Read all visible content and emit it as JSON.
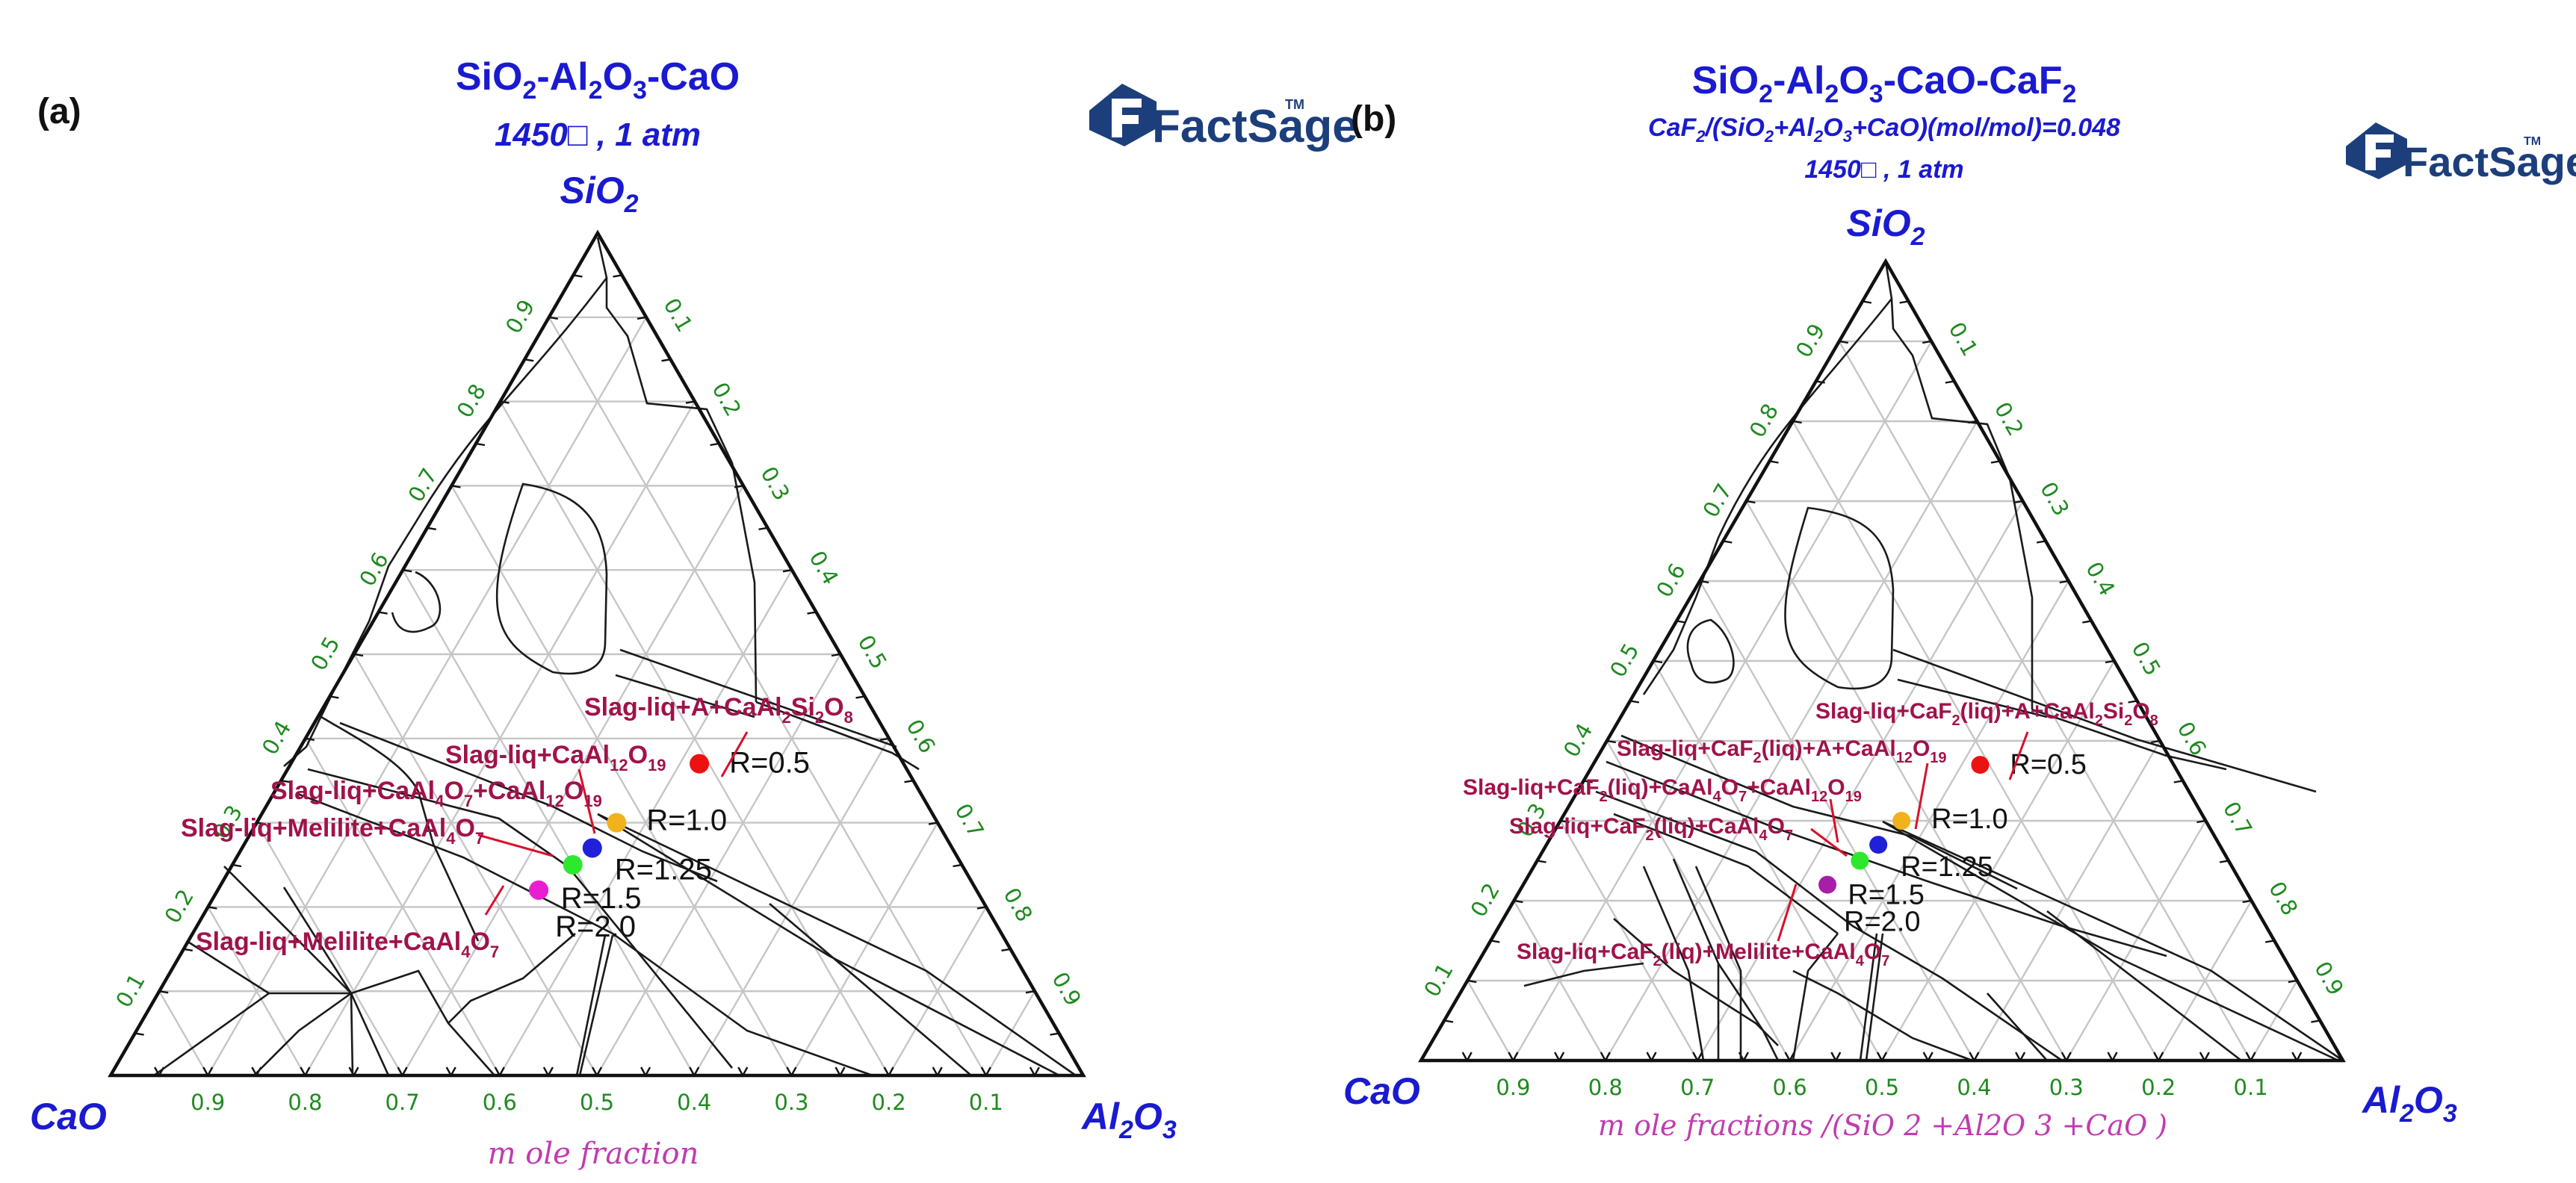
{
  "panels": [
    {
      "panel_label": "(a)",
      "title": "SiO2-Al2O3-CaO",
      "conditions": "1450□ , 1 atm",
      "composition": "",
      "logo_text": "FactSage",
      "logo_tm": "TM",
      "corners": {
        "top": "SiO2",
        "left": "CaO",
        "right": "Al2O3"
      },
      "axis_title": "m ole fraction",
      "tick_labels": [
        "0.1",
        "0.2",
        "0.3",
        "0.4",
        "0.5",
        "0.6",
        "0.7",
        "0.8",
        "0.9"
      ],
      "phase_labels": [
        "Slag-liq+A+CaAl2Si2O8",
        "Slag-liq+CaAl12O19",
        "Slag-liq+CaAl4O7+CaAl12O19",
        "Slag-liq+Melilite+CaAl4O7",
        "Slag-liq+Melilite+CaAl4O7"
      ],
      "points": [
        {
          "label": "R=0.5",
          "color": "#ee1111",
          "sio2": 0.37,
          "al2o3": 0.42,
          "cao": 0.21
        },
        {
          "label": "R=1.0",
          "color": "#f2b21c",
          "sio2": 0.3,
          "al2o3": 0.37,
          "cao": 0.33
        },
        {
          "label": "R=1.25",
          "color": "#2020d8",
          "sio2": 0.27,
          "al2o3": 0.36,
          "cao": 0.37
        },
        {
          "label": "R=1.5",
          "color": "#2ee82e",
          "sio2": 0.25,
          "al2o3": 0.35,
          "cao": 0.4
        },
        {
          "label": "R=2.0",
          "color": "#e81ed0",
          "sio2": 0.22,
          "al2o3": 0.33,
          "cao": 0.45
        }
      ]
    },
    {
      "panel_label": "(b)",
      "title": "SiO2-Al2O3-CaO-CaF2",
      "conditions": "1450□ , 1 atm",
      "composition": "CaF2/(SiO2+Al2O3+CaO)(mol/mol)=0.048",
      "logo_text": "FactSage",
      "logo_tm": "TM",
      "corners": {
        "top": "SiO2",
        "left": "CaO",
        "right": "Al2O3"
      },
      "axis_title": "m ole fractions /(SiO 2 +Al2O 3 +CaO )",
      "tick_labels": [
        "0.1",
        "0.2",
        "0.3",
        "0.4",
        "0.5",
        "0.6",
        "0.7",
        "0.8",
        "0.9"
      ],
      "phase_labels": [
        "Slag-liq+CaF2(liq)+A+CaAl2Si2O8",
        "Slag-liq+CaF2(liq)+A+CaAl12O19",
        "Slag-liq+CaF2(liq)+CaAl4O7+CaAl12O19",
        "Slag-liq+CaF2(liq)+CaAl4O7",
        "Slag-liq+CaF2(liq)+Melilite+CaAl4O7"
      ],
      "points": [
        {
          "label": "R=0.5",
          "color": "#ee1111",
          "sio2": 0.37,
          "al2o3": 0.42,
          "cao": 0.21
        },
        {
          "label": "R=1.0",
          "color": "#f2b21c",
          "sio2": 0.3,
          "al2o3": 0.37,
          "cao": 0.33
        },
        {
          "label": "R=1.25",
          "color": "#2020d8",
          "sio2": 0.27,
          "al2o3": 0.36,
          "cao": 0.37
        },
        {
          "label": "R=1.5",
          "color": "#2ee82e",
          "sio2": 0.25,
          "al2o3": 0.35,
          "cao": 0.4
        },
        {
          "label": "R=2.0",
          "color": "#a81ea8",
          "sio2": 0.22,
          "al2o3": 0.33,
          "cao": 0.45
        }
      ]
    }
  ]
}
